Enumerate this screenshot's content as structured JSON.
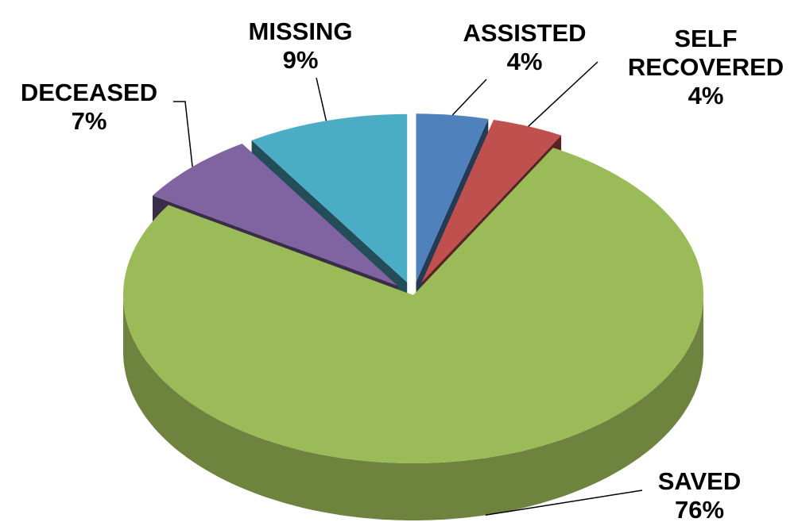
{
  "chart_data": {
    "type": "pie",
    "categories": [
      "ASSISTED",
      "SELF RECOVERED",
      "SAVED",
      "DECEASED",
      "MISSING"
    ],
    "values": [
      4,
      4,
      76,
      7,
      9
    ],
    "value_labels": [
      "4%",
      "4%",
      "76%",
      "7%",
      "9%"
    ],
    "colors": [
      "#4f81bd",
      "#c0504d",
      "#9bbb59",
      "#8064a2",
      "#4bacc6"
    ]
  }
}
